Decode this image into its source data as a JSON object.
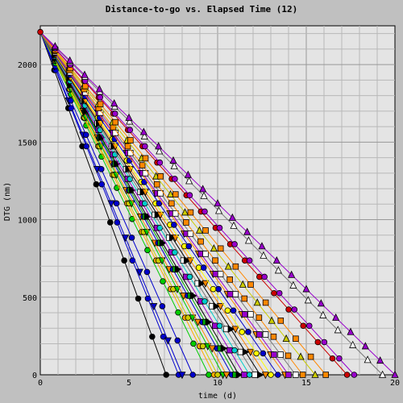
{
  "chart_data": {
    "type": "line",
    "title": "Distance-to-go  vs.  Elapsed Time (12)",
    "xlabel": "time (d)",
    "ylabel": "DTG (nm)",
    "xlim": [
      0,
      20
    ],
    "ylim": [
      0,
      2250
    ],
    "xticks": [
      0,
      5,
      10,
      15,
      20
    ],
    "yticks": [
      0,
      500,
      1000,
      1500,
      2000
    ],
    "grid": true,
    "start": [
      0,
      2210
    ],
    "series": [
      {
        "finish": 7.1,
        "color": "#000000",
        "marker": "circle"
      },
      {
        "finish": 7.8,
        "color": "#0000cc",
        "marker": "circle"
      },
      {
        "finish": 8.0,
        "color": "#0000cc",
        "marker": "tri-down"
      },
      {
        "finish": 8.6,
        "color": "#0000cc",
        "marker": "circle"
      },
      {
        "finish": 9.5,
        "color": "#00cc00",
        "marker": "circle"
      },
      {
        "finish": 9.8,
        "color": "#ffaa00",
        "marker": "circle"
      },
      {
        "finish": 10.0,
        "color": "#cccc00",
        "marker": "circle"
      },
      {
        "finish": 10.3,
        "color": "#00cc00",
        "marker": "tri-down"
      },
      {
        "finish": 10.5,
        "color": "#ff8800",
        "marker": "tri-down"
      },
      {
        "finish": 10.8,
        "color": "#0000cc",
        "marker": "circle"
      },
      {
        "finish": 11.0,
        "color": "#00aa00",
        "marker": "square"
      },
      {
        "finish": 11.2,
        "color": "#000000",
        "marker": "tri-right"
      },
      {
        "finish": 11.5,
        "color": "#9900cc",
        "marker": "square"
      },
      {
        "finish": 11.8,
        "color": "#00cccc",
        "marker": "circle"
      },
      {
        "finish": 12.1,
        "color": "#ffffff",
        "marker": "square"
      },
      {
        "finish": 12.4,
        "color": "#000000",
        "marker": "tri-right"
      },
      {
        "finish": 12.7,
        "color": "#ff8800",
        "marker": "tri-down"
      },
      {
        "finish": 13.0,
        "color": "#ffff00",
        "marker": "circle"
      },
      {
        "finish": 13.4,
        "color": "#0000cc",
        "marker": "circle"
      },
      {
        "finish": 13.8,
        "color": "#ff8800",
        "marker": "tri-down"
      },
      {
        "finish": 14.0,
        "color": "#9900cc",
        "marker": "square"
      },
      {
        "finish": 14.4,
        "color": "#ffffff",
        "marker": "square"
      },
      {
        "finish": 14.8,
        "color": "#ff8800",
        "marker": "square"
      },
      {
        "finish": 15.5,
        "color": "#cccc00",
        "marker": "tri-up"
      },
      {
        "finish": 16.1,
        "color": "#ff8800",
        "marker": "square"
      },
      {
        "finish": 17.3,
        "color": "#cc0000",
        "marker": "circle"
      },
      {
        "finish": 17.7,
        "color": "#9900cc",
        "marker": "circle"
      },
      {
        "finish": 19.3,
        "color": "#ffffff",
        "marker": "tri-up"
      },
      {
        "finish": 20.0,
        "color": "#9900cc",
        "marker": "tri-up"
      }
    ]
  }
}
